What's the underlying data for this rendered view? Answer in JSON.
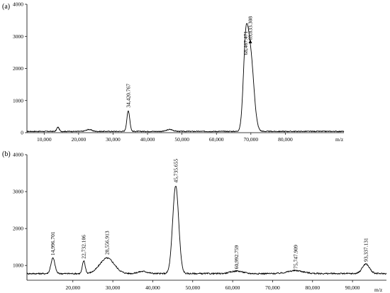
{
  "chart_data": [
    {
      "type": "line",
      "panel_label": "(a)",
      "xlabel": "m/z",
      "ylabel": "",
      "xlim": [
        5000,
        97000
      ],
      "ylim": [
        0,
        4000
      ],
      "x_ticks": [
        {
          "value": 10000,
          "label": "10,000"
        },
        {
          "value": 20000,
          "label": "20,000"
        },
        {
          "value": 30000,
          "label": "30,000"
        },
        {
          "value": 40000,
          "label": "40,000"
        },
        {
          "value": 50000,
          "label": "50,000"
        },
        {
          "value": 60000,
          "label": "60,000"
        },
        {
          "value": 70000,
          "label": "70,000"
        },
        {
          "value": 80000,
          "label": "80,000"
        }
      ],
      "y_ticks": [
        {
          "value": 0,
          "label": "0"
        },
        {
          "value": 1000,
          "label": "1000"
        },
        {
          "value": 2000,
          "label": "2000"
        },
        {
          "value": 3000,
          "label": "3000"
        },
        {
          "value": 4000,
          "label": "4000"
        }
      ],
      "baseline": 40,
      "peaks": [
        {
          "x": 14000,
          "height": 130,
          "sigma": 350
        },
        {
          "x": 23000,
          "height": 60,
          "sigma": 800
        },
        {
          "x": 34420.767,
          "height": 640,
          "sigma": 420
        },
        {
          "x": 46500,
          "height": 60,
          "sigma": 900
        },
        {
          "x": 68467.471,
          "height": 2200,
          "sigma": 700
        },
        {
          "x": 69833.308,
          "height": 2400,
          "sigma": 1000
        }
      ],
      "annotations": [
        {
          "x": 34420.767,
          "y": 780,
          "text": "34,420.767"
        },
        {
          "x": 68467.471,
          "y": 2420,
          "text": "68,467.471"
        },
        {
          "x": 69833.308,
          "y": 2880,
          "text": "69,833.308"
        }
      ],
      "arrow_at": {
        "x": 69833.308,
        "y": 2850
      }
    },
    {
      "type": "line",
      "panel_label": "(b)",
      "xlabel": "m/z",
      "ylabel": "",
      "xlim": [
        8500,
        98500
      ],
      "ylim": [
        600,
        4000
      ],
      "x_ticks": [
        {
          "value": 20000,
          "label": "20,000"
        },
        {
          "value": 30000,
          "label": "30,000"
        },
        {
          "value": 40000,
          "label": "40,000"
        },
        {
          "value": 50000,
          "label": "50,000"
        },
        {
          "value": 60000,
          "label": "60,000"
        },
        {
          "value": 70000,
          "label": "70,000"
        },
        {
          "value": 80000,
          "label": "80,000"
        },
        {
          "value": 90000,
          "label": "90,000"
        }
      ],
      "y_ticks": [
        {
          "value": 1000,
          "label": "1000"
        },
        {
          "value": 2000,
          "label": "2000"
        },
        {
          "value": 3000,
          "label": "3000"
        },
        {
          "value": 4000,
          "label": "4000"
        }
      ],
      "baseline": 780,
      "peaks": [
        {
          "x": 14996.701,
          "height": 420,
          "sigma": 500
        },
        {
          "x": 22732.106,
          "height": 340,
          "sigma": 350
        },
        {
          "x": 28556.913,
          "height": 420,
          "sigma": 1800
        },
        {
          "x": 37500,
          "height": 60,
          "sigma": 1200
        },
        {
          "x": 45735.655,
          "height": 2380,
          "sigma": 750
        },
        {
          "x": 60992.759,
          "height": 70,
          "sigma": 1500
        },
        {
          "x": 75747.909,
          "height": 80,
          "sigma": 2000
        },
        {
          "x": 93337.131,
          "height": 260,
          "sigma": 900
        }
      ],
      "annotations": [
        {
          "x": 14996.701,
          "y": 1270,
          "text": "14,996.701"
        },
        {
          "x": 22732.106,
          "y": 1180,
          "text": "22,732.106"
        },
        {
          "x": 28556.913,
          "y": 1290,
          "text": "28,556.913"
        },
        {
          "x": 45735.655,
          "y": 3240,
          "text": "45,735.655"
        },
        {
          "x": 60992.759,
          "y": 900,
          "text": "60,992.759"
        },
        {
          "x": 75747.909,
          "y": 910,
          "text": "75,747.909"
        },
        {
          "x": 93337.131,
          "y": 1100,
          "text": "93,337.131"
        }
      ]
    }
  ]
}
